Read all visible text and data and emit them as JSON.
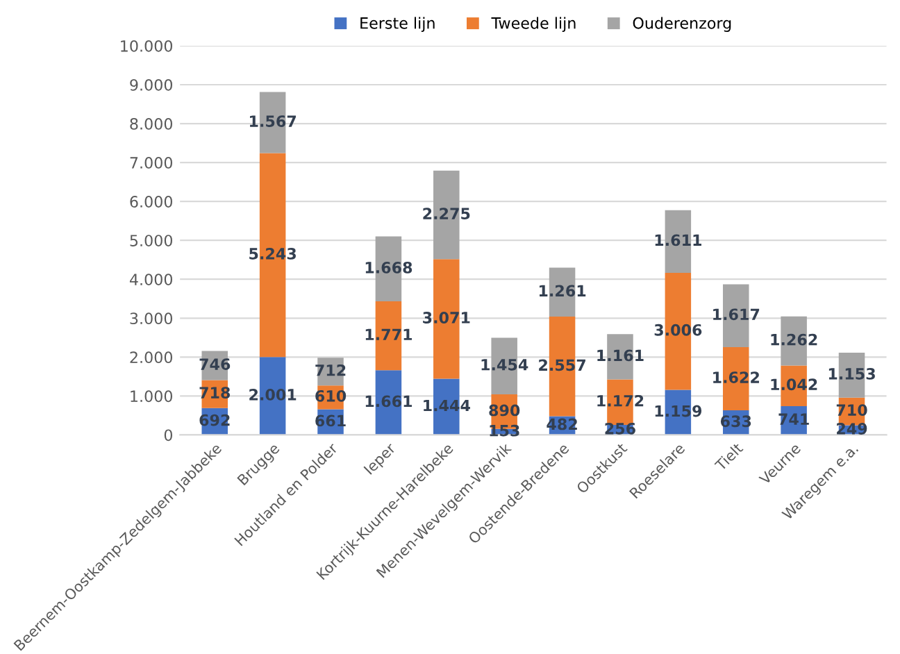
{
  "chart_data": {
    "type": "bar",
    "stacked": true,
    "categories": [
      "Beernem-Oostkamp-Zedelgem-Jabbeke",
      "Brugge",
      "Houtland en Polder",
      "Ieper",
      "Kortrijk-Kuurne-Harelbeke",
      "Menen-Wevelgem-Wervik",
      "Oostende-Bredene",
      "Oostkust",
      "Roeselare",
      "Tielt",
      "Veurne",
      "Waregem e.a."
    ],
    "series": [
      {
        "name": "Eerste lijn",
        "color": "#4472c4",
        "values": [
          692,
          2001,
          661,
          1661,
          1444,
          153,
          482,
          256,
          1159,
          633,
          741,
          249
        ],
        "value_labels": [
          "692",
          "2.001",
          "661",
          "1.661",
          "1.444",
          "153",
          "482",
          "256",
          "1.159",
          "633",
          "741",
          "249"
        ]
      },
      {
        "name": "Tweede lijn",
        "color": "#ed7d31",
        "values": [
          718,
          5243,
          610,
          1771,
          3071,
          890,
          2557,
          1172,
          3006,
          1622,
          1042,
          710
        ],
        "value_labels": [
          "718",
          "5.243",
          "610",
          "1.771",
          "3.071",
          "890",
          "2.557",
          "1.172",
          "3.006",
          "1.622",
          "1.042",
          "710"
        ]
      },
      {
        "name": "Ouderenzorg",
        "color": "#a5a5a5",
        "values": [
          746,
          1567,
          712,
          1668,
          2275,
          1454,
          1261,
          1161,
          1611,
          1617,
          1262,
          1153
        ],
        "value_labels": [
          "746",
          "1.567",
          "712",
          "1.668",
          "2.275",
          "1.454",
          "1.261",
          "1.161",
          "1.611",
          "1.617",
          "1.262",
          "1.153"
        ]
      }
    ],
    "ylim": [
      0,
      10000
    ],
    "yticks": [
      0,
      {
        "value": 1000,
        "label": "1.000"
      },
      {
        "value": 2000,
        "label": "2.000"
      },
      {
        "value": 3000,
        "label": "3.000"
      },
      {
        "value": 4000,
        "label": "4.000"
      },
      {
        "value": 5000,
        "label": "5.000"
      },
      {
        "value": 6000,
        "label": "6.000"
      },
      {
        "value": 7000,
        "label": "7.000"
      },
      {
        "value": 8000,
        "label": "8.000"
      },
      {
        "value": 9000,
        "label": "9.000"
      },
      {
        "value": 10000,
        "label": "10.000"
      }
    ],
    "grid": "y",
    "legend": "top"
  }
}
